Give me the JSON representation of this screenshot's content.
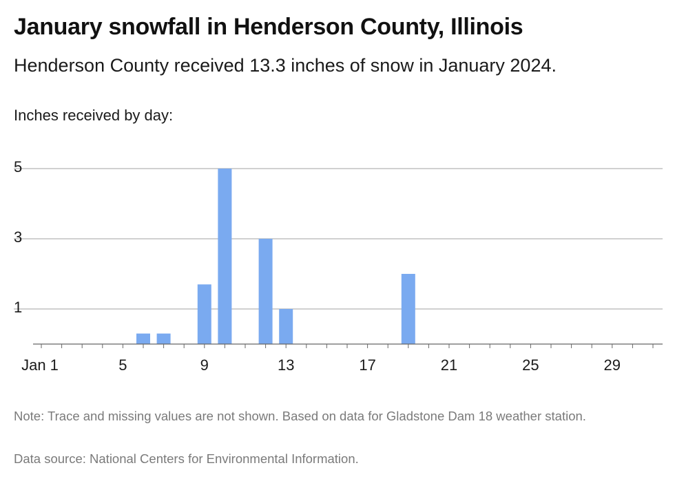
{
  "header": {
    "title": "January snowfall in Henderson County, Illinois",
    "subtitle": "Henderson County received 13.3 inches of snow in January 2024.",
    "units_label": "Inches received by day:"
  },
  "footer": {
    "note": "Note: Trace and missing values are not shown. Based on data for Gladstone Dam 18 weather station.",
    "source": "Data source: National Centers for Environmental Information."
  },
  "colors": {
    "bar": "#7aaaf0",
    "grid": "#b5b5b5",
    "axis": "#666666",
    "text": "#1a1a1a"
  },
  "chart_data": {
    "type": "bar",
    "x_tick_labels": [
      {
        "day": 1,
        "label": "Jan 1"
      },
      {
        "day": 5,
        "label": "5"
      },
      {
        "day": 9,
        "label": "9"
      },
      {
        "day": 13,
        "label": "13"
      },
      {
        "day": 17,
        "label": "17"
      },
      {
        "day": 21,
        "label": "21"
      },
      {
        "day": 25,
        "label": "25"
      },
      {
        "day": 29,
        "label": "29"
      }
    ],
    "y_ticks": [
      1,
      3,
      5
    ],
    "ylim": [
      0,
      5
    ],
    "xlim": [
      1,
      31
    ],
    "grid": true,
    "bars": [
      {
        "day": 6,
        "value": 0.3
      },
      {
        "day": 7,
        "value": 0.3
      },
      {
        "day": 9,
        "value": 1.7
      },
      {
        "day": 10,
        "value": 5.0
      },
      {
        "day": 12,
        "value": 3.0
      },
      {
        "day": 13,
        "value": 1.0
      },
      {
        "day": 19,
        "value": 2.0
      }
    ]
  }
}
